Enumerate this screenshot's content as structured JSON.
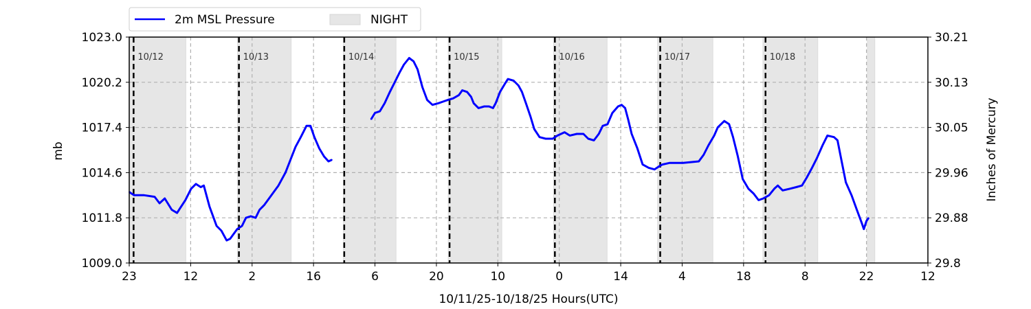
{
  "chart_data": {
    "type": "line",
    "title": "",
    "xlabel": "10/11/25-10/18/25  Hours(UTC)",
    "ylabel": "mb",
    "ylabel_right": "Inches of Mercury",
    "xlim_hours": [
      0,
      182
    ],
    "ylim": [
      1009.0,
      1023.0
    ],
    "ylim_right": [
      29.8,
      30.21
    ],
    "x_ticks": [
      {
        "h": 0,
        "label": "23"
      },
      {
        "h": 14,
        "label": "12"
      },
      {
        "h": 28,
        "label": "2"
      },
      {
        "h": 42,
        "label": "16"
      },
      {
        "h": 56,
        "label": "6"
      },
      {
        "h": 70,
        "label": "20"
      },
      {
        "h": 84,
        "label": "10"
      },
      {
        "h": 98,
        "label": "0"
      },
      {
        "h": 112,
        "label": "14"
      },
      {
        "h": 126,
        "label": "4"
      },
      {
        "h": 140,
        "label": "18"
      },
      {
        "h": 154,
        "label": "8"
      },
      {
        "h": 168,
        "label": "22"
      },
      {
        "h": 182,
        "label": "12"
      }
    ],
    "y_ticks": [
      "1009.0",
      "1011.8",
      "1014.6",
      "1017.4",
      "1020.2",
      "1023.0"
    ],
    "y_ticks_right": [
      "29.8",
      "29.88",
      "29.96",
      "30.05",
      "30.13",
      "30.21"
    ],
    "grid": true,
    "legend": {
      "placement": "top-left-outside",
      "entries": [
        {
          "label": "2m MSL Pressure",
          "type": "line"
        },
        {
          "label": "NIGHT",
          "type": "patch"
        }
      ]
    },
    "colors": {
      "series": "#0000ff",
      "night": "#e6e6e6",
      "grid": "#b0b0b0",
      "day_line": "#000000"
    },
    "day_markers": [
      {
        "h": 1,
        "label": "10/12"
      },
      {
        "h": 25,
        "label": "10/13"
      },
      {
        "h": 49,
        "label": "10/14"
      },
      {
        "h": 73,
        "label": "10/15"
      },
      {
        "h": 97,
        "label": "10/16"
      },
      {
        "h": 121,
        "label": "10/17"
      },
      {
        "h": 145,
        "label": "10/18"
      }
    ],
    "night_periods": [
      [
        0,
        12.9
      ],
      [
        24.7,
        36.9
      ],
      [
        48.8,
        60.8
      ],
      [
        72.7,
        84.9
      ],
      [
        96.7,
        108.9
      ],
      [
        120.4,
        133.0
      ],
      [
        144.4,
        156.9
      ],
      [
        168.2,
        169.9
      ]
    ],
    "series": [
      {
        "name": "2m MSL Pressure",
        "segments": [
          [
            [
              0,
              1013.4
            ],
            [
              1.1,
              1013.2
            ],
            [
              3.4,
              1013.2
            ],
            [
              5.8,
              1013.1
            ],
            [
              6.9,
              1012.7
            ],
            [
              8.1,
              1013.0
            ],
            [
              9.7,
              1012.3
            ],
            [
              10.9,
              1012.1
            ],
            [
              11.6,
              1012.4
            ],
            [
              12.8,
              1012.9
            ],
            [
              14.1,
              1013.6
            ],
            [
              15.2,
              1013.9
            ],
            [
              16.3,
              1013.7
            ],
            [
              17.0,
              1013.8
            ],
            [
              18.3,
              1012.5
            ],
            [
              19.9,
              1011.3
            ],
            [
              21.0,
              1011.0
            ],
            [
              22.2,
              1010.4
            ],
            [
              23.0,
              1010.5
            ],
            [
              24.6,
              1011.1
            ],
            [
              25.7,
              1011.3
            ],
            [
              26.6,
              1011.8
            ],
            [
              27.7,
              1011.9
            ],
            [
              28.8,
              1011.8
            ],
            [
              29.7,
              1012.3
            ],
            [
              30.8,
              1012.6
            ],
            [
              32.4,
              1013.2
            ],
            [
              34.0,
              1013.8
            ],
            [
              35.6,
              1014.6
            ],
            [
              36.6,
              1015.3
            ],
            [
              37.9,
              1016.2
            ],
            [
              39.1,
              1016.8
            ],
            [
              40.4,
              1017.5
            ],
            [
              41.3,
              1017.5
            ],
            [
              42.2,
              1016.8
            ],
            [
              43.3,
              1016.1
            ],
            [
              44.4,
              1015.6
            ],
            [
              45.4,
              1015.3
            ],
            [
              46.2,
              1015.4
            ]
          ],
          [
            [
              55.1,
              1017.9
            ],
            [
              56.0,
              1018.3
            ],
            [
              57.1,
              1018.4
            ],
            [
              58.2,
              1018.9
            ],
            [
              59.4,
              1019.6
            ],
            [
              60.5,
              1020.2
            ],
            [
              61.6,
              1020.8
            ],
            [
              62.6,
              1021.3
            ],
            [
              63.8,
              1021.7
            ],
            [
              64.8,
              1021.5
            ],
            [
              65.7,
              1021.0
            ],
            [
              66.8,
              1019.9
            ],
            [
              67.9,
              1019.1
            ],
            [
              69.1,
              1018.8
            ],
            [
              70.4,
              1018.9
            ],
            [
              71.5,
              1019.0
            ],
            [
              72.6,
              1019.1
            ],
            [
              73.8,
              1019.2
            ],
            [
              75.1,
              1019.4
            ],
            [
              75.9,
              1019.7
            ],
            [
              77.0,
              1019.6
            ],
            [
              77.9,
              1019.3
            ],
            [
              78.5,
              1018.9
            ],
            [
              79.6,
              1018.6
            ],
            [
              80.9,
              1018.7
            ],
            [
              82.0,
              1018.7
            ],
            [
              82.9,
              1018.6
            ],
            [
              83.5,
              1018.9
            ],
            [
              84.5,
              1019.6
            ],
            [
              85.6,
              1020.1
            ],
            [
              86.3,
              1020.4
            ],
            [
              87.6,
              1020.3
            ],
            [
              88.7,
              1020.0
            ],
            [
              89.5,
              1019.6
            ],
            [
              90.4,
              1018.9
            ],
            [
              91.4,
              1018.1
            ],
            [
              92.3,
              1017.3
            ],
            [
              93.5,
              1016.8
            ],
            [
              94.9,
              1016.7
            ],
            [
              96.5,
              1016.7
            ],
            [
              97.6,
              1016.9
            ],
            [
              99.2,
              1017.1
            ],
            [
              100.4,
              1016.9
            ],
            [
              102.0,
              1017.0
            ],
            [
              103.5,
              1017.0
            ],
            [
              104.6,
              1016.7
            ],
            [
              105.9,
              1016.6
            ],
            [
              107.0,
              1017.0
            ],
            [
              107.9,
              1017.5
            ],
            [
              109.0,
              1017.6
            ],
            [
              110.1,
              1018.3
            ],
            [
              111.4,
              1018.7
            ],
            [
              112.2,
              1018.8
            ],
            [
              113.0,
              1018.6
            ],
            [
              113.7,
              1017.9
            ],
            [
              114.5,
              1017.0
            ],
            [
              115.8,
              1016.1
            ],
            [
              117.0,
              1015.1
            ],
            [
              118.4,
              1014.9
            ],
            [
              119.7,
              1014.8
            ],
            [
              120.8,
              1015.0
            ],
            [
              121.5,
              1015.1
            ],
            [
              123.1,
              1015.2
            ],
            [
              124.7,
              1015.2
            ],
            [
              126.2,
              1015.2
            ],
            [
              129.8,
              1015.3
            ],
            [
              130.9,
              1015.7
            ],
            [
              132.0,
              1016.3
            ],
            [
              133.3,
              1016.9
            ],
            [
              134.1,
              1017.4
            ],
            [
              135.6,
              1017.8
            ],
            [
              136.7,
              1017.6
            ],
            [
              137.6,
              1016.8
            ],
            [
              138.7,
              1015.6
            ],
            [
              139.8,
              1014.2
            ],
            [
              141.1,
              1013.6
            ],
            [
              142.3,
              1013.3
            ],
            [
              143.4,
              1012.9
            ],
            [
              144.5,
              1013.0
            ],
            [
              145.8,
              1013.2
            ],
            [
              147.0,
              1013.6
            ],
            [
              147.8,
              1013.8
            ],
            [
              148.9,
              1013.5
            ],
            [
              150.5,
              1013.6
            ],
            [
              152.0,
              1013.7
            ],
            [
              153.3,
              1013.8
            ],
            [
              154.4,
              1014.3
            ],
            [
              155.6,
              1014.9
            ],
            [
              156.7,
              1015.5
            ],
            [
              158.0,
              1016.3
            ],
            [
              159.1,
              1016.9
            ],
            [
              160.6,
              1016.8
            ],
            [
              161.4,
              1016.6
            ],
            [
              162.2,
              1015.5
            ],
            [
              163.3,
              1014.0
            ],
            [
              164.6,
              1013.2
            ],
            [
              165.8,
              1012.3
            ],
            [
              166.9,
              1011.5
            ],
            [
              167.4,
              1011.1
            ],
            [
              168.0,
              1011.6
            ],
            [
              168.5,
              1011.8
            ]
          ]
        ]
      }
    ]
  }
}
